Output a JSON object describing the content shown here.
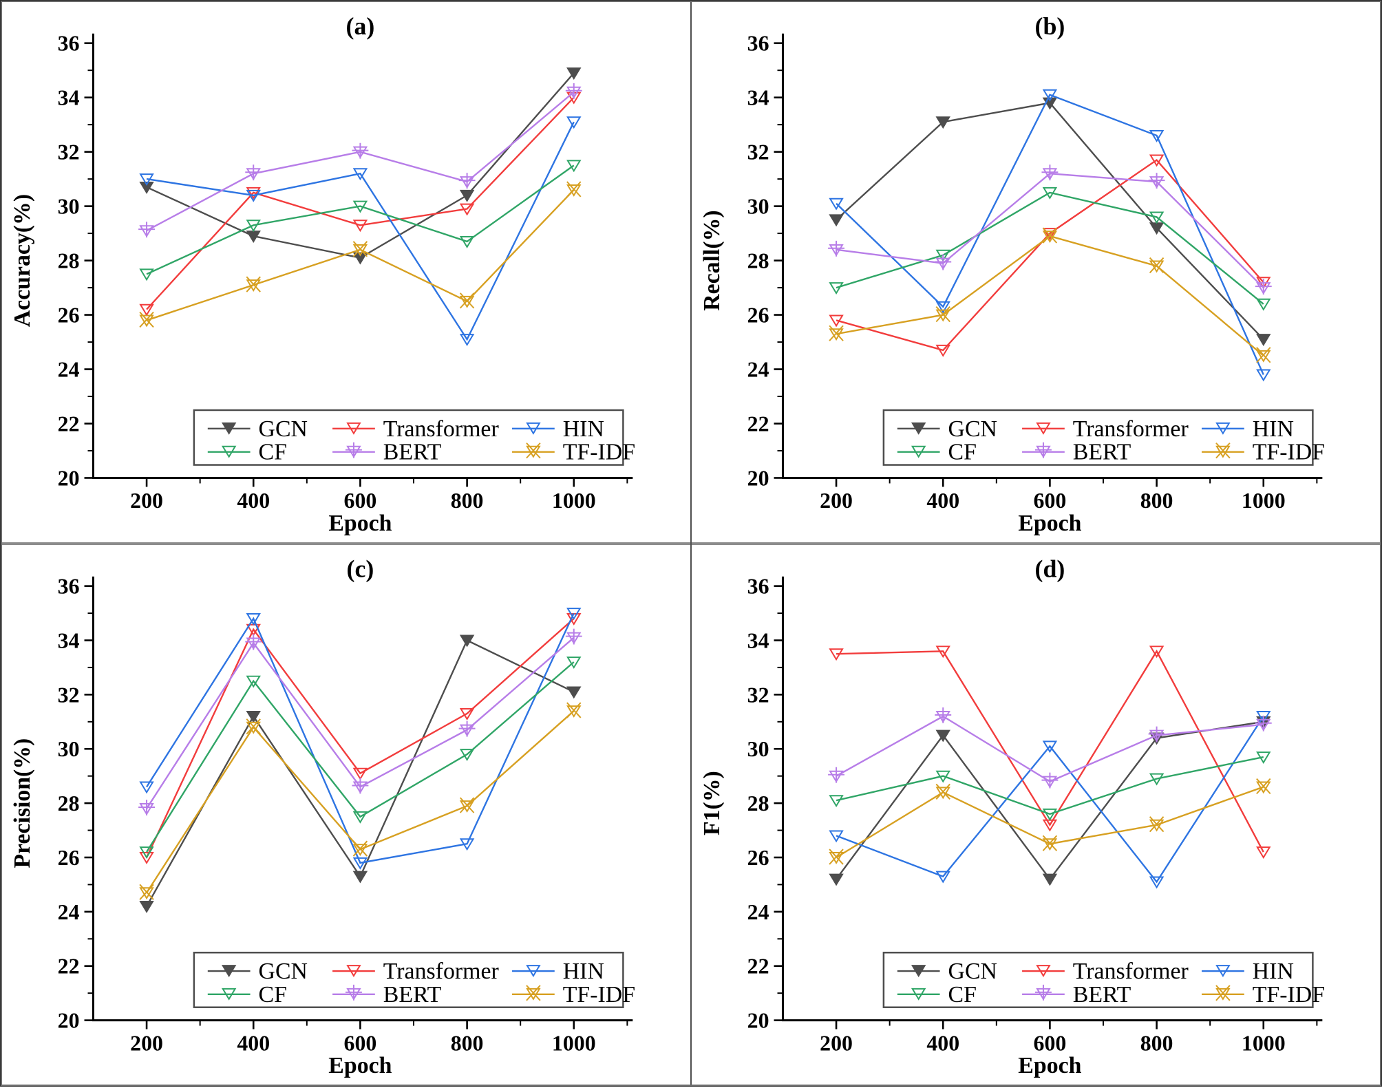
{
  "figure": {
    "background": "#ffffff",
    "border_color": "#6b6b6b",
    "divider_vertical_color": "#4f4f4f",
    "divider_horizontal_color": "#8c8c8c"
  },
  "axes": {
    "xlabel": "Epoch",
    "x_ticks": [
      200,
      400,
      600,
      800,
      1000
    ],
    "x_minor_ticks": [
      300,
      500,
      700,
      900,
      1100
    ],
    "ylim": [
      20,
      36
    ],
    "y_ticks": [
      20,
      22,
      24,
      26,
      28,
      30,
      32,
      34,
      36
    ],
    "axis_color": "#000000",
    "tick_direction": "out",
    "grid": false
  },
  "legend": {
    "position": "bottom-center-inside",
    "border_color": "#4d4d4d",
    "rows": [
      [
        "GCN",
        "Transformer",
        "HIN"
      ],
      [
        "CF",
        "BERT",
        "TF-IDF"
      ]
    ]
  },
  "series_styles": [
    {
      "name": "GCN",
      "color": "#4d4d4d",
      "marker": "triangle-down-filled",
      "icon": "filled-down-triangle"
    },
    {
      "name": "Transformer",
      "color": "#f23c3c",
      "marker": "triangle-down-open",
      "icon": "open-down-triangle"
    },
    {
      "name": "HIN",
      "color": "#2d74e2",
      "marker": "triangle-down-open",
      "icon": "open-down-triangle"
    },
    {
      "name": "CF",
      "color": "#2fa566",
      "marker": "triangle-down-open",
      "icon": "open-down-triangle"
    },
    {
      "name": "BERT",
      "color": "#b77de8",
      "marker": "triangle-down-plus",
      "icon": "down-triangle-with-plus"
    },
    {
      "name": "TF-IDF",
      "color": "#d7a021",
      "marker": "triangle-down-x",
      "icon": "down-triangle-with-x"
    }
  ],
  "chart_data": [
    {
      "type": "line",
      "panel_id": "a",
      "title": "(a)",
      "ylabel": "Accuracy(%)",
      "xlabel": "Epoch",
      "x": [
        200,
        400,
        600,
        800,
        1000
      ],
      "ylim": [
        20,
        36
      ],
      "series": [
        {
          "name": "GCN",
          "values": [
            30.7,
            28.9,
            28.1,
            30.4,
            34.9
          ]
        },
        {
          "name": "Transformer",
          "values": [
            26.2,
            30.5,
            29.3,
            29.9,
            34.0
          ]
        },
        {
          "name": "HIN",
          "values": [
            31.0,
            30.4,
            31.2,
            25.1,
            33.1
          ]
        },
        {
          "name": "CF",
          "values": [
            27.5,
            29.3,
            30.0,
            28.7,
            31.5
          ]
        },
        {
          "name": "BERT",
          "values": [
            29.1,
            31.2,
            32.0,
            30.9,
            34.2
          ]
        },
        {
          "name": "TF-IDF",
          "values": [
            25.8,
            27.1,
            28.4,
            26.5,
            30.6
          ]
        }
      ]
    },
    {
      "type": "line",
      "panel_id": "b",
      "title": "(b)",
      "ylabel": "Recall(%)",
      "xlabel": "Epoch",
      "x": [
        200,
        400,
        600,
        800,
        1000
      ],
      "ylim": [
        20,
        36
      ],
      "series": [
        {
          "name": "GCN",
          "values": [
            29.5,
            33.1,
            33.8,
            29.2,
            25.1
          ]
        },
        {
          "name": "Transformer",
          "values": [
            25.8,
            24.7,
            29.0,
            31.7,
            27.2
          ]
        },
        {
          "name": "HIN",
          "values": [
            30.1,
            26.3,
            34.1,
            32.6,
            23.8
          ]
        },
        {
          "name": "CF",
          "values": [
            27.0,
            28.2,
            30.5,
            29.6,
            26.4
          ]
        },
        {
          "name": "BERT",
          "values": [
            28.4,
            27.9,
            31.2,
            30.9,
            27.0
          ]
        },
        {
          "name": "TF-IDF",
          "values": [
            25.3,
            26.0,
            28.9,
            27.8,
            24.5
          ]
        }
      ]
    },
    {
      "type": "line",
      "panel_id": "c",
      "title": "(c)",
      "ylabel": "Precision(%)",
      "xlabel": "Epoch",
      "x": [
        200,
        400,
        600,
        800,
        1000
      ],
      "ylim": [
        20,
        36
      ],
      "series": [
        {
          "name": "GCN",
          "values": [
            24.2,
            31.2,
            25.3,
            34.0,
            32.1
          ]
        },
        {
          "name": "Transformer",
          "values": [
            26.0,
            34.4,
            29.1,
            31.3,
            34.8
          ]
        },
        {
          "name": "HIN",
          "values": [
            28.6,
            34.8,
            25.8,
            26.5,
            35.0
          ]
        },
        {
          "name": "CF",
          "values": [
            26.2,
            32.5,
            27.5,
            29.8,
            33.2
          ]
        },
        {
          "name": "BERT",
          "values": [
            27.8,
            33.9,
            28.6,
            30.7,
            34.1
          ]
        },
        {
          "name": "TF-IDF",
          "values": [
            24.7,
            30.8,
            26.3,
            27.9,
            31.4
          ]
        }
      ]
    },
    {
      "type": "line",
      "panel_id": "d",
      "title": "(d)",
      "ylabel": "F1(%)",
      "xlabel": "Epoch",
      "x": [
        200,
        400,
        600,
        800,
        1000
      ],
      "ylim": [
        20,
        36
      ],
      "series": [
        {
          "name": "GCN",
          "values": [
            25.2,
            30.5,
            25.2,
            30.4,
            31.0
          ]
        },
        {
          "name": "Transformer",
          "values": [
            33.5,
            33.6,
            27.2,
            33.6,
            26.2
          ]
        },
        {
          "name": "HIN",
          "values": [
            26.8,
            25.3,
            30.1,
            25.1,
            31.2
          ]
        },
        {
          "name": "CF",
          "values": [
            28.1,
            29.0,
            27.6,
            28.9,
            29.7
          ]
        },
        {
          "name": "BERT",
          "values": [
            29.0,
            31.2,
            28.8,
            30.5,
            30.9
          ]
        },
        {
          "name": "TF-IDF",
          "values": [
            26.0,
            28.4,
            26.5,
            27.2,
            28.6
          ]
        }
      ]
    }
  ]
}
